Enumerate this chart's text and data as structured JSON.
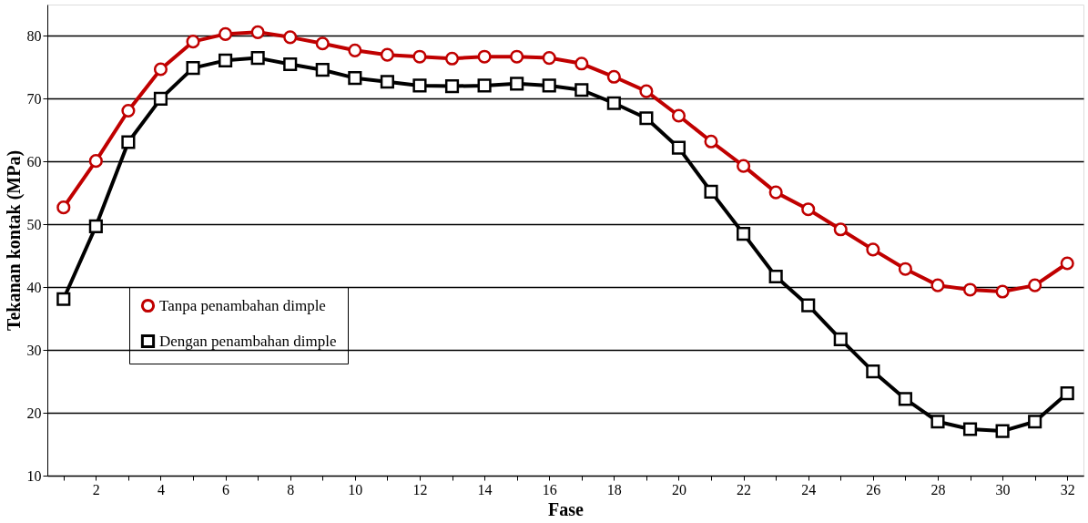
{
  "chart_data": {
    "type": "line",
    "xlabel": "Fase",
    "ylabel": "Tekanan kontak (MPa)",
    "x": [
      1,
      2,
      3,
      4,
      5,
      6,
      7,
      8,
      9,
      10,
      11,
      12,
      13,
      14,
      15,
      16,
      17,
      18,
      19,
      20,
      21,
      22,
      23,
      24,
      25,
      26,
      27,
      28,
      29,
      30,
      31,
      32
    ],
    "series": [
      {
        "name": "Tanpa penambahan dimple",
        "color": "#c00000",
        "marker": "circle",
        "values": [
          52.7,
          60.1,
          68.1,
          74.7,
          79.1,
          80.3,
          80.6,
          79.8,
          78.8,
          77.7,
          77.0,
          76.7,
          76.4,
          76.7,
          76.7,
          76.5,
          75.6,
          73.5,
          71.2,
          67.3,
          63.2,
          59.3,
          55.1,
          52.4,
          49.2,
          46.0,
          42.9,
          40.3,
          39.6,
          39.3,
          40.3,
          43.8
        ]
      },
      {
        "name": "Dengan penambahan dimple",
        "color": "#000000",
        "marker": "square",
        "values": [
          38.1,
          49.7,
          63.1,
          70.0,
          74.9,
          76.1,
          76.5,
          75.5,
          74.6,
          73.3,
          72.7,
          72.1,
          72.0,
          72.1,
          72.4,
          72.1,
          71.4,
          69.3,
          66.9,
          62.2,
          55.2,
          48.5,
          41.7,
          37.1,
          31.7,
          26.6,
          22.2,
          18.6,
          17.4,
          17.1,
          18.6,
          23.1
        ]
      }
    ],
    "xlim": [
      0.5,
      32.5
    ],
    "xticks": [
      {
        "value": 1,
        "label": null
      },
      2,
      {
        "value": 3,
        "label": null
      },
      4,
      {
        "value": 5,
        "label": null
      },
      6,
      {
        "value": 7,
        "label": null
      },
      8,
      {
        "value": 9,
        "label": null
      },
      10,
      {
        "value": 11,
        "label": null
      },
      12,
      {
        "value": 13,
        "label": null
      },
      14,
      {
        "value": 15,
        "label": null
      },
      16,
      {
        "value": 17,
        "label": null
      },
      18,
      {
        "value": 19,
        "label": null
      },
      20,
      {
        "value": 21,
        "label": null
      },
      22,
      {
        "value": 23,
        "label": null
      },
      24,
      {
        "value": 25,
        "label": null
      },
      26,
      {
        "value": 27,
        "label": null
      },
      28,
      {
        "value": 29,
        "label": null
      },
      30,
      {
        "value": 31,
        "label": null
      },
      32
    ],
    "ylim": [
      10,
      85
    ],
    "yticks": [
      10,
      20,
      30,
      40,
      50,
      60,
      70,
      80
    ],
    "grid": "y",
    "legend": "left",
    "line_style": "solid"
  }
}
